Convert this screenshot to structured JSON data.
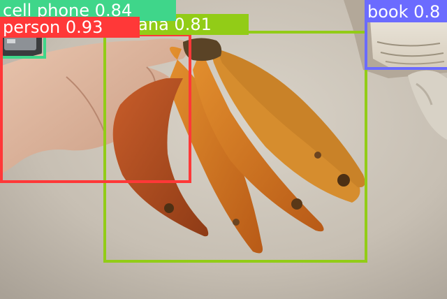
{
  "detections": [
    {
      "label": "cell phone",
      "score": "0.84",
      "color": "#3fd68a"
    },
    {
      "label": "banana",
      "score": "0.81",
      "color": "#92cc17"
    },
    {
      "label": "book",
      "score": "0.8",
      "color": "#6b6bff"
    },
    {
      "label": "person",
      "score": "0.93",
      "color": "#ff3838"
    }
  ]
}
